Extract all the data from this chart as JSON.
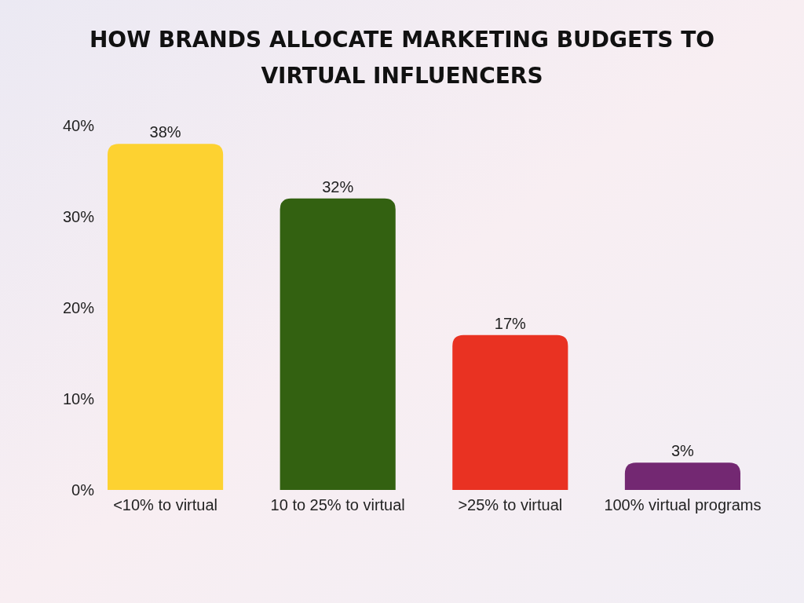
{
  "chart_data": {
    "type": "bar",
    "title": "HOW BRANDS ALLOCATE MARKETING BUDGETS TO VIRTUAL INFLUENCERS",
    "categories": [
      "<10% to virtual",
      "10 to 25% to virtual",
      ">25% to virtual",
      "100% virtual programs"
    ],
    "values": [
      38,
      32,
      17,
      3
    ],
    "colors": [
      "#fdd231",
      "#336111",
      "#e93222",
      "#732872"
    ],
    "value_labels": [
      "38%",
      "32%",
      "17%",
      "3%"
    ],
    "ylim": [
      0,
      40
    ],
    "yticks": [
      {
        "value": 0,
        "label": "0%"
      },
      {
        "value": 10,
        "label": "10%"
      },
      {
        "value": 20,
        "label": "20%"
      },
      {
        "value": 30,
        "label": "30%"
      },
      {
        "value": 40,
        "label": "40%"
      }
    ],
    "grid": false
  }
}
